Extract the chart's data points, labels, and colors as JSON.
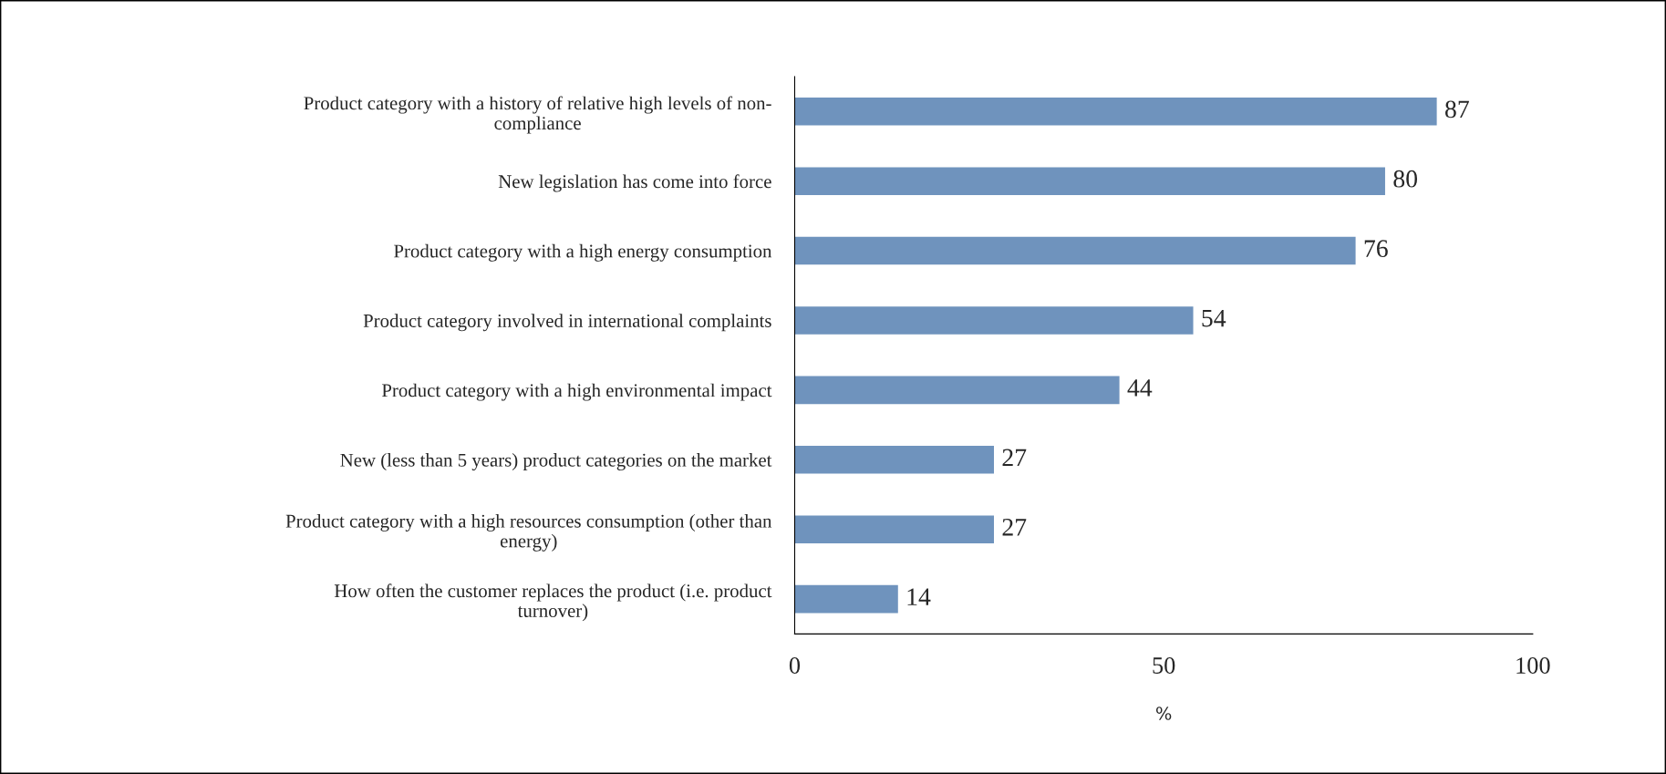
{
  "chart_data": {
    "type": "bar",
    "orientation": "horizontal",
    "categories": [
      "Product category with a history of relative high levels of non-\ncompliance",
      "New legislation has come into force",
      "Product category with a high energy consumption",
      "Product category involved in international complaints",
      "Product category with a high environmental impact",
      "New (less than 5 years) product categories on the market",
      "Product category with a high resources consumption (other than\nenergy)",
      "How often the customer replaces the product (i.e. product\nturnover)"
    ],
    "values": [
      87,
      80,
      76,
      54,
      44,
      27,
      27,
      14
    ],
    "color": "#6f93bd",
    "xlim": [
      0,
      100
    ],
    "xticks": [
      0,
      50,
      100
    ],
    "xlabel": "%",
    "data_labels": true,
    "grid": false,
    "legend": false
  }
}
